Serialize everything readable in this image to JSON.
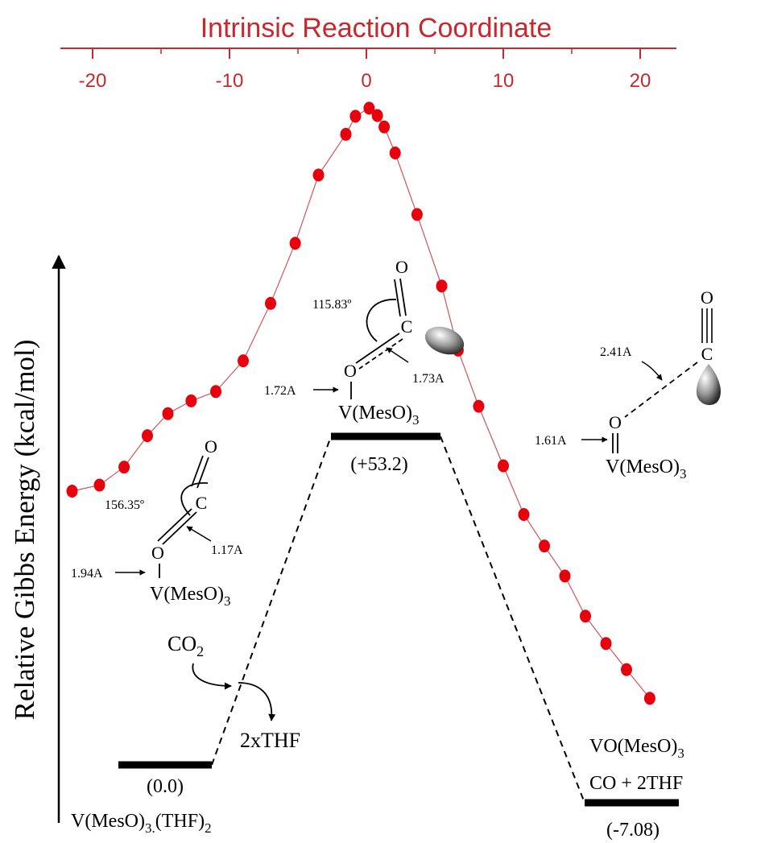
{
  "top_axis": {
    "title": "Intrinsic Reaction Coordinate",
    "ticks": [
      "-20",
      "-10",
      "0",
      "10",
      "20"
    ],
    "color": "#c8282d"
  },
  "y_axis": {
    "title": "Relative Gibbs Energy (kcal/mol)"
  },
  "chart_data": {
    "type": "scatter",
    "x": [
      -21.5,
      -19.5,
      -17.7,
      -16.0,
      -14.5,
      -12.8,
      -11.0,
      -9.0,
      -7.0,
      -5.2,
      -3.5,
      -1.5,
      -0.8,
      0.2,
      0.8,
      1.3,
      2.1,
      3.7,
      5.5,
      6.7,
      8.2,
      10.0,
      11.5,
      13.0,
      14.5,
      16.0,
      17.5,
      19.0,
      20.7
    ],
    "y": [
      0.0,
      0.9,
      3.6,
      8.3,
      11.6,
      13.5,
      14.9,
      19.5,
      28.1,
      37.1,
      47.3,
      53.4,
      56.1,
      57.3,
      56.2,
      54.5,
      50.6,
      41.4,
      30.7,
      21.1,
      12.7,
      3.8,
      -3.5,
      -8.2,
      -12.7,
      -18.7,
      -22.8,
      -26.7,
      -31.0
    ],
    "marker_color": "#e8000d",
    "line_color": "#c8282d"
  },
  "energy_levels": [
    {
      "energy": "(0.0)",
      "species": "V(MesO)",
      "sub1": "3.",
      "species_tail": "(THF)",
      "sub2": "2"
    },
    {
      "energy": "(+53.2)"
    },
    {
      "energy": "(-7.08)",
      "product_line1": "VO(MesO)",
      "product_sub": "3",
      "product_line2": "CO + 2THF"
    }
  ],
  "reactant_structure": {
    "angle": "156.35º",
    "co_bond": "1.17A",
    "vo_bond": "1.94A",
    "atom_o_top": "O",
    "atom_c": "C",
    "atom_o": "O",
    "metal": "V(MesO)",
    "metal_sub": "3"
  },
  "ts_structure": {
    "angle": "115.83º",
    "co_bond": "1.73A",
    "vo_bond": "1.72A",
    "atom_o_top": "O",
    "atom_c": "C",
    "atom_o": "O",
    "metal": "V(MesO)",
    "metal_sub": "3"
  },
  "product_structure": {
    "c_dist": "2.41A",
    "vo_bond": "1.61A",
    "atom_o_top": "O",
    "atom_c": "C",
    "atom_o": "O",
    "metal": "V(MesO)",
    "metal_sub": "3"
  },
  "reagents": {
    "co2": "CO",
    "co2_sub": "2",
    "thf": "2xTHF"
  }
}
